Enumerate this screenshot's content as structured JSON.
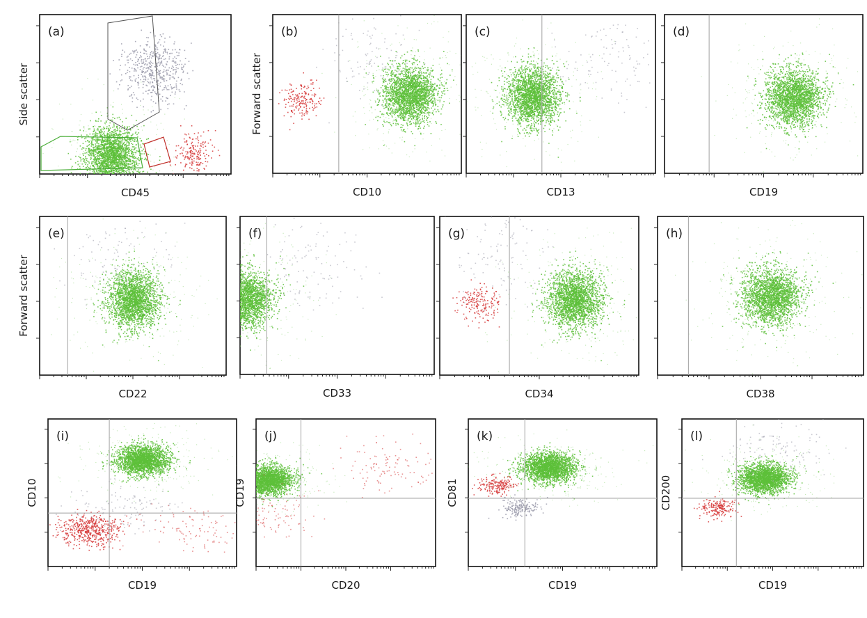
{
  "colors": {
    "green_population": "#5dbf3a",
    "red_population": "#d63a3a",
    "grey_population": "#9a9aaa",
    "green_gate": "#4caf3a",
    "red_gate": "#c0302a",
    "grey_gate": "#555555",
    "quadrant_line": "#a9a9a9"
  },
  "chart_data": [
    {
      "panel": "(a)",
      "type": "scatter",
      "xlabel": "CD45",
      "ylabel": "Side scatter",
      "x_scale": "log",
      "y_scale": "linear",
      "populations": [
        {
          "color": "green",
          "gated": true,
          "x_center_log": 1.5,
          "y_center": 0.12,
          "relative_size": "large"
        },
        {
          "color": "red",
          "gated": true,
          "x_center_log": 3.2,
          "y_center": 0.14,
          "relative_size": "small"
        },
        {
          "color": "grey",
          "gated": true,
          "x_center_log": 2.4,
          "y_center": 0.65,
          "relative_size": "medium"
        }
      ]
    },
    {
      "panel": "(b)",
      "type": "scatter",
      "xlabel": "CD10",
      "ylabel": "Forward scatter",
      "x_scale": "log",
      "y_scale": "linear",
      "quadrant_x_log": 1.4,
      "populations": [
        {
          "color": "green",
          "x_center_log": 2.9,
          "y_center": 0.5,
          "relative_size": "large"
        },
        {
          "color": "red",
          "x_center_log": 0.6,
          "y_center": 0.46,
          "relative_size": "small"
        },
        {
          "color": "grey",
          "x_center_log": 2.0,
          "y_center": 0.75,
          "relative_size": "sparse"
        }
      ]
    },
    {
      "panel": "(c)",
      "type": "scatter",
      "xlabel": "CD13",
      "ylabel": "",
      "x_scale": "log",
      "y_scale": "linear",
      "quadrant_x_log": 1.6,
      "populations": [
        {
          "color": "green",
          "x_center_log": 1.4,
          "y_center": 0.49,
          "relative_size": "large"
        },
        {
          "color": "grey",
          "x_center_log": 3.0,
          "y_center": 0.75,
          "relative_size": "sparse"
        }
      ]
    },
    {
      "panel": "(d)",
      "type": "scatter",
      "xlabel": "CD19",
      "ylabel": "",
      "x_scale": "log",
      "y_scale": "linear",
      "quadrant_x_log": 0.9,
      "populations": [
        {
          "color": "green",
          "x_center_log": 2.6,
          "y_center": 0.48,
          "relative_size": "large"
        }
      ]
    },
    {
      "panel": "(e)",
      "type": "scatter",
      "xlabel": "CD22",
      "ylabel": "Forward scatter",
      "x_scale": "log",
      "y_scale": "linear",
      "quadrant_x_log": 0.6,
      "populations": [
        {
          "color": "green",
          "x_center_log": 2.0,
          "y_center": 0.48,
          "relative_size": "large"
        },
        {
          "color": "grey",
          "x_center_log": 1.8,
          "y_center": 0.7,
          "relative_size": "sparse"
        }
      ]
    },
    {
      "panel": "(f)",
      "type": "scatter",
      "xlabel": "CD33",
      "ylabel": "",
      "x_scale": "log",
      "y_scale": "linear",
      "quadrant_x_log": 0.55,
      "populations": [
        {
          "color": "green",
          "x_center_log": 0.1,
          "y_center": 0.48,
          "relative_size": "large"
        },
        {
          "color": "grey",
          "x_center_log": 1.55,
          "y_center": 0.7,
          "relative_size": "sparse"
        }
      ]
    },
    {
      "panel": "(g)",
      "type": "scatter",
      "xlabel": "CD34",
      "ylabel": "",
      "x_scale": "log",
      "y_scale": "linear",
      "quadrant_x_log": 1.4,
      "populations": [
        {
          "color": "green",
          "x_center_log": 2.7,
          "y_center": 0.48,
          "relative_size": "large"
        },
        {
          "color": "red",
          "x_center_log": 0.8,
          "y_center": 0.45,
          "relative_size": "small"
        },
        {
          "color": "grey",
          "x_center_log": 1.3,
          "y_center": 0.75,
          "relative_size": "sparse"
        }
      ]
    },
    {
      "panel": "(h)",
      "type": "scatter",
      "xlabel": "CD38",
      "ylabel": "",
      "x_scale": "log",
      "y_scale": "linear",
      "quadrant_x_log": 0.6,
      "populations": [
        {
          "color": "green",
          "x_center_log": 2.2,
          "y_center": 0.5,
          "relative_size": "large"
        }
      ]
    },
    {
      "panel": "(i)",
      "type": "scatter",
      "xlabel": "CD19",
      "ylabel": "CD10",
      "x_scale": "log",
      "y_scale": "log",
      "quadrant_x_log": 1.3,
      "quadrant_y_log": 1.45,
      "populations": [
        {
          "color": "green",
          "x_center_log": 2.0,
          "y_center_log": 2.9,
          "relative_size": "large"
        },
        {
          "color": "red",
          "x_center_log": 0.9,
          "y_center_log": 1.0,
          "relative_size": "medium"
        },
        {
          "color": "red",
          "x_center_log": 3.0,
          "y_center_log": 1.1,
          "relative_size": "sparse"
        },
        {
          "color": "grey",
          "x_center_log": 1.6,
          "y_center_log": 1.6,
          "relative_size": "sparse"
        }
      ]
    },
    {
      "panel": "(j)",
      "type": "scatter",
      "xlabel": "CD20",
      "ylabel": "CD19",
      "x_scale": "log",
      "y_scale": "log",
      "quadrant_x_log": 1.0,
      "quadrant_y_log": 1.85,
      "populations": [
        {
          "color": "green",
          "x_center_log": 0.25,
          "y_center_log": 2.35,
          "relative_size": "large"
        },
        {
          "color": "red",
          "x_center_log": 2.9,
          "y_center_log": 2.75,
          "relative_size": "sparse"
        },
        {
          "color": "red",
          "x_center_log": 0.35,
          "y_center_log": 1.4,
          "relative_size": "sparse"
        }
      ]
    },
    {
      "panel": "(k)",
      "type": "scatter",
      "xlabel": "CD19",
      "ylabel": "CD81",
      "x_scale": "log",
      "y_scale": "log",
      "quadrant_x_log": 1.2,
      "quadrant_y_log": 1.85,
      "populations": [
        {
          "color": "green",
          "x_center_log": 1.7,
          "y_center_log": 2.7,
          "relative_size": "large"
        },
        {
          "color": "red",
          "x_center_log": 0.6,
          "y_center_log": 2.2,
          "relative_size": "small"
        },
        {
          "color": "grey",
          "x_center_log": 1.1,
          "y_center_log": 1.6,
          "relative_size": "small"
        }
      ]
    },
    {
      "panel": "(l)",
      "type": "scatter",
      "xlabel": "CD19",
      "ylabel": "CD200",
      "x_scale": "log",
      "y_scale": "log",
      "quadrant_x_log": 1.2,
      "quadrant_y_log": 1.85,
      "populations": [
        {
          "color": "green",
          "x_center_log": 1.8,
          "y_center_log": 2.4,
          "relative_size": "large"
        },
        {
          "color": "red",
          "x_center_log": 0.8,
          "y_center_log": 1.6,
          "relative_size": "small"
        },
        {
          "color": "grey",
          "x_center_log": 2.1,
          "y_center_log": 3.2,
          "relative_size": "sparse"
        }
      ]
    }
  ]
}
